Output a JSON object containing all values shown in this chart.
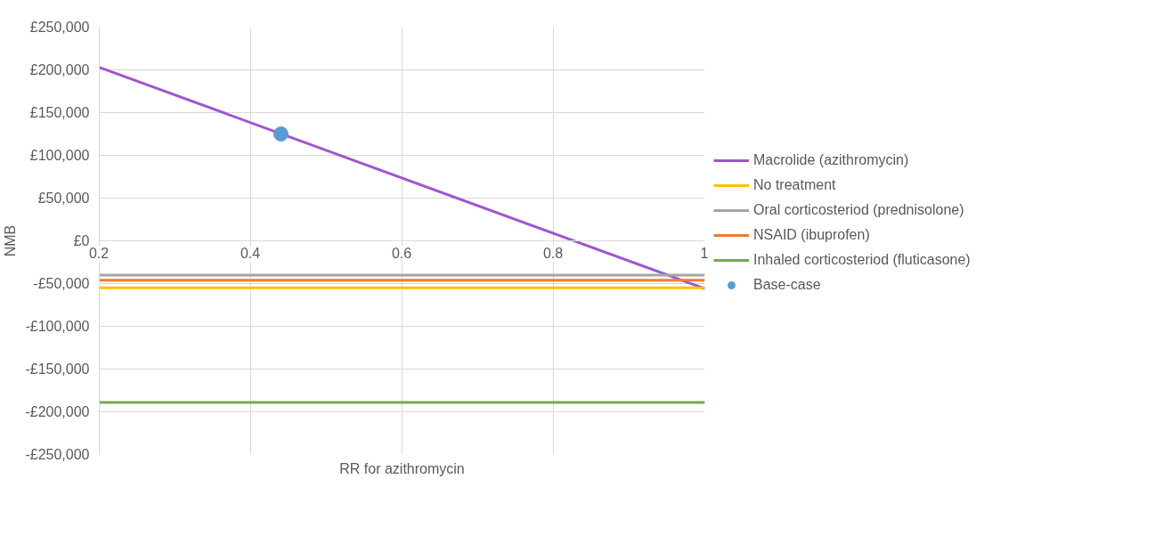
{
  "chart_data": {
    "type": "line",
    "xlabel": "RR for azithromycin",
    "ylabel": "NMB",
    "xlim": [
      0.2,
      1
    ],
    "xticks": [
      0.2,
      0.4,
      0.6,
      0.8,
      1
    ],
    "ylim": [
      -250000,
      250000
    ],
    "yticks": [
      {
        "value": -250000,
        "label": "-£250,000"
      },
      {
        "value": -200000,
        "label": "-£200,000"
      },
      {
        "value": -150000,
        "label": "-£150,000"
      },
      {
        "value": -100000,
        "label": "-£100,000"
      },
      {
        "value": -50000,
        "label": "-£50,000"
      },
      {
        "value": 0,
        "label": "£0"
      },
      {
        "value": 50000,
        "label": "£50,000"
      },
      {
        "value": 100000,
        "label": "£100,000"
      },
      {
        "value": 150000,
        "label": "£150,000"
      },
      {
        "value": 200000,
        "label": "£200,000"
      },
      {
        "value": 250000,
        "label": "£250,000"
      }
    ],
    "grid": true,
    "legend": "right",
    "series": [
      {
        "name": "Macrolide (azithromycin)",
        "color": "#9e56d1",
        "x": [
          0.2,
          1
        ],
        "values": [
          203000,
          -56000
        ]
      },
      {
        "name": "No treatment",
        "color": "#ffc000",
        "x": [
          0.2,
          1
        ],
        "values": [
          -55000,
          -55000
        ]
      },
      {
        "name": "Oral corticosteriod (prednisolone)",
        "color": "#a5a5a5",
        "x": [
          0.2,
          1
        ],
        "values": [
          -40000,
          -40000
        ]
      },
      {
        "name": "NSAID (ibuprofen)",
        "color": "#ed7d31",
        "x": [
          0.2,
          1
        ],
        "values": [
          -46000,
          -46000
        ]
      },
      {
        "name": "Inhaled corticosteriod (fluticasone)",
        "color": "#70ad47",
        "x": [
          0.2,
          1
        ],
        "values": [
          -189000,
          -189000
        ]
      },
      {
        "name": "Base-case",
        "type": "scatter",
        "marker": "circle",
        "color": "#5b9bd5",
        "x": [
          0.44
        ],
        "values": [
          125000
        ]
      }
    ]
  }
}
